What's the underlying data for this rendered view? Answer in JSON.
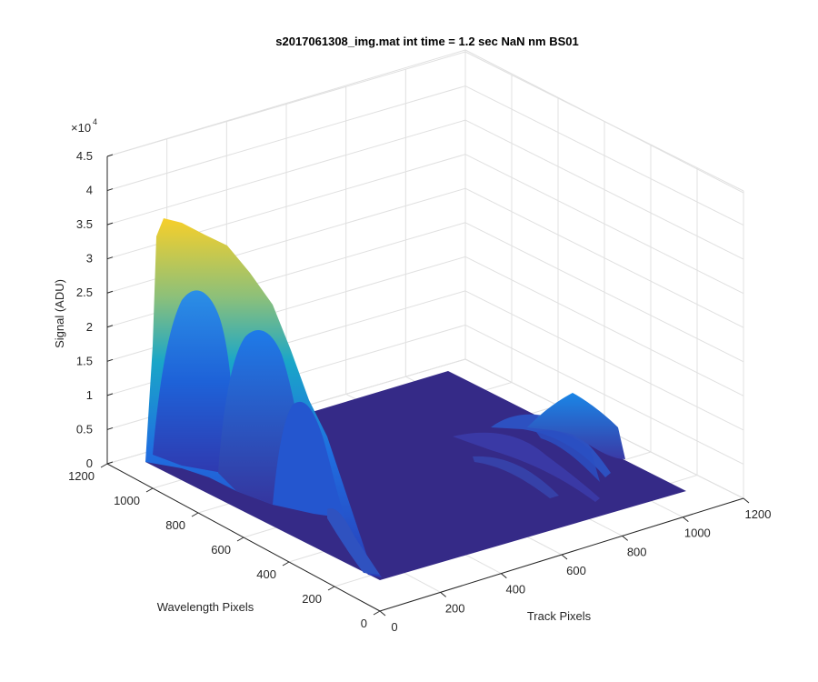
{
  "chart_data": {
    "type": "surface",
    "title": "s2017061308_img.mat int time = 1.2 sec  NaN nm BS01",
    "xlabel": "Track Pixels",
    "ylabel": "Wavelength Pixels",
    "zlabel": "Signal (ADU)",
    "zscale_exponent_label": "×10",
    "zscale_exponent_power": "4",
    "xlim": [
      0,
      1200
    ],
    "ylim": [
      0,
      1200
    ],
    "zlim": [
      0,
      45000
    ],
    "x_ticks": [
      "0",
      "200",
      "400",
      "600",
      "800",
      "1000",
      "1200"
    ],
    "y_ticks": [
      "0",
      "200",
      "400",
      "600",
      "800",
      "1000",
      "1200"
    ],
    "z_ticks": [
      "0",
      "0.5",
      "1",
      "1.5",
      "2",
      "2.5",
      "3",
      "3.5",
      "4",
      "4.5"
    ],
    "grid": true,
    "colormap": "parula",
    "colormap_colors": [
      "#352a87",
      "#0363e1",
      "#1485d4",
      "#06a7c6",
      "#38b99e",
      "#92bf73",
      "#d9ba56",
      "#fcce2e",
      "#f9fb0e"
    ],
    "peaks": [
      {
        "region": "low-track, high-wavelength ridge",
        "x_range": [
          0,
          300
        ],
        "y_range": [
          500,
          1200
        ],
        "max_signal": 36000
      },
      {
        "region": "track ~600-1000 secondary bumps",
        "x_range": [
          600,
          1050
        ],
        "y_range": [
          600,
          1200
        ],
        "max_signal": 10000
      }
    ],
    "baseline_signal": 0
  }
}
